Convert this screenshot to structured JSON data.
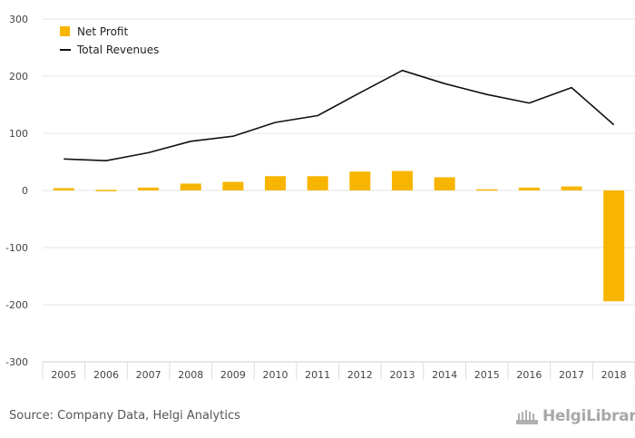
{
  "chart_data": {
    "type": "bar",
    "categories": [
      "2005",
      "2006",
      "2007",
      "2008",
      "2009",
      "2010",
      "2011",
      "2012",
      "2013",
      "2014",
      "2015",
      "2016",
      "2017",
      "2018"
    ],
    "series": [
      {
        "name": "Net Profit",
        "type": "bar",
        "color": "#f7b500",
        "values": [
          4,
          1,
          5,
          12,
          15,
          25,
          25,
          33,
          34,
          23,
          2,
          5,
          7,
          -194
        ]
      },
      {
        "name": "Total Revenues",
        "type": "line",
        "color": "#111111",
        "values": [
          55,
          52,
          66,
          86,
          95,
          119,
          131,
          171,
          210,
          187,
          168,
          153,
          180,
          115
        ]
      }
    ],
    "y_ticks": [
      "300",
      "200",
      "100",
      "0",
      "-100",
      "-200",
      "-300"
    ],
    "ylim": [
      -300,
      300
    ],
    "grid": true,
    "legend": "top-left"
  },
  "footer": {
    "source": "Source: Company Data, Helgi Analytics",
    "brand": "HelgiLibrary"
  }
}
